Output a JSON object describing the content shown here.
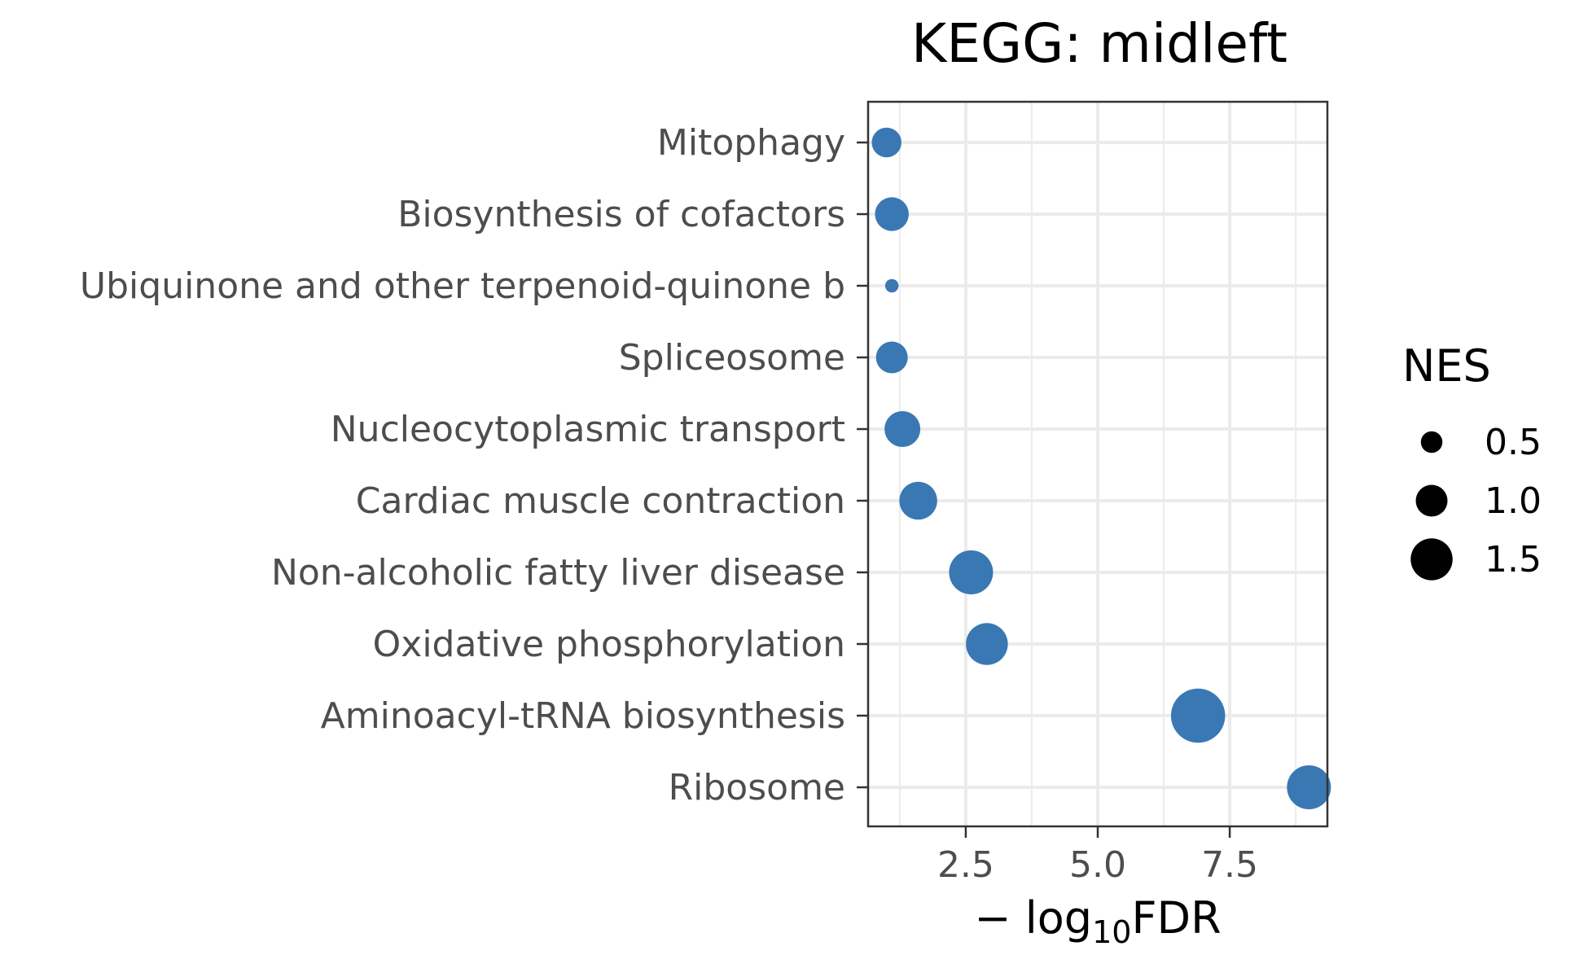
{
  "chart_data": {
    "type": "scatter",
    "title": "KEGG: midleft",
    "xlabel": {
      "prefix": "− log",
      "subscript": "10",
      "suffix": "FDR"
    },
    "ylabel": "",
    "xlim": [
      0.65,
      9.35
    ],
    "x_ticks": [
      2.5,
      5.0,
      7.5
    ],
    "x_tick_labels": [
      "2.5",
      "5.0",
      "7.5"
    ],
    "grid": true,
    "point_color": "#3a78b4",
    "categories": [
      "Mitophagy",
      "Biosynthesis of cofactors",
      "Ubiquinone and other terpenoid-quinone b",
      "Spliceosome",
      "Nucleocytoplasmic transport",
      "Cardiac muscle contraction",
      "Non-alcoholic fatty liver disease",
      "Oxidative phosphorylation",
      "Aminoacyl-tRNA biosynthesis",
      "Ribosome"
    ],
    "x": [
      1.0,
      1.1,
      1.1,
      1.1,
      1.3,
      1.6,
      2.6,
      2.9,
      6.9,
      9.0
    ],
    "size": [
      0.9,
      1.1,
      0.1,
      1.0,
      1.2,
      1.3,
      1.6,
      1.5,
      2.1,
      1.6
    ],
    "size_legend": {
      "title": "NES",
      "values": [
        0.5,
        1.0,
        1.5
      ],
      "labels": [
        "0.5",
        "1.0",
        "1.5"
      ]
    }
  }
}
